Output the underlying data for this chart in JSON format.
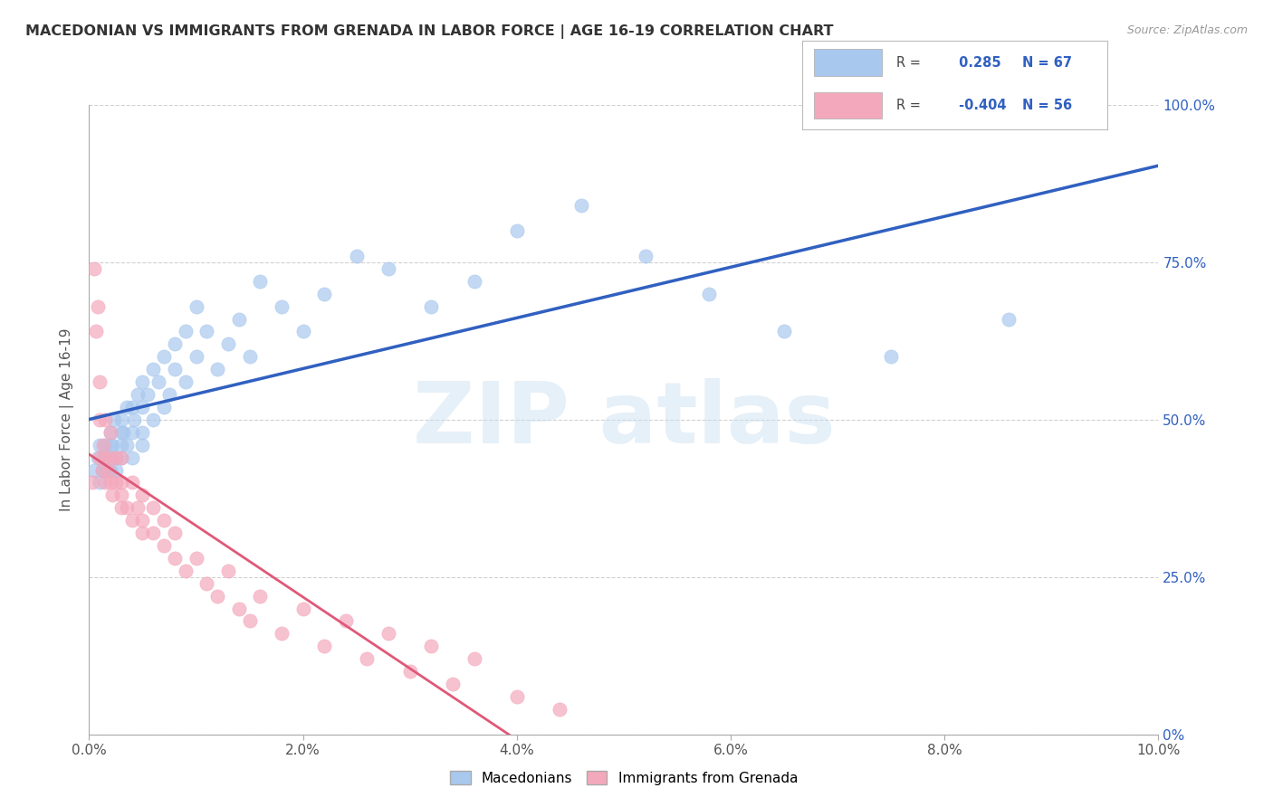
{
  "title": "MACEDONIAN VS IMMIGRANTS FROM GRENADA IN LABOR FORCE | AGE 16-19 CORRELATION CHART",
  "source_text": "Source: ZipAtlas.com",
  "ylabel": "In Labor Force | Age 16-19",
  "xlim": [
    0.0,
    0.1
  ],
  "ylim": [
    0.0,
    1.0
  ],
  "xtick_labels": [
    "0.0%",
    "2.0%",
    "4.0%",
    "6.0%",
    "8.0%",
    "10.0%"
  ],
  "xtick_vals": [
    0.0,
    0.02,
    0.04,
    0.06,
    0.08,
    0.1
  ],
  "ytick_vals": [
    0.0,
    0.25,
    0.5,
    0.75,
    1.0
  ],
  "ytick_labels_right": [
    "0%",
    "25.0%",
    "50.0%",
    "75.0%",
    "100.0%"
  ],
  "blue_R": 0.285,
  "blue_N": 67,
  "pink_R": -0.404,
  "pink_N": 56,
  "blue_color": "#A8C8EE",
  "pink_color": "#F4A8BC",
  "blue_line_color": "#3060C0",
  "pink_line_color": "#E05878",
  "legend_label_blue": "Macedonians",
  "legend_label_pink": "Immigrants from Grenada",
  "watermark_text": "ZIP atlas",
  "background_color": "#FFFFFF",
  "grid_color": "#CCCCCC",
  "blue_x": [
    0.0005,
    0.0008,
    0.001,
    0.001,
    0.0012,
    0.0013,
    0.0015,
    0.0015,
    0.0015,
    0.0018,
    0.002,
    0.002,
    0.002,
    0.002,
    0.0022,
    0.0023,
    0.0025,
    0.0025,
    0.003,
    0.003,
    0.003,
    0.003,
    0.0032,
    0.0035,
    0.0035,
    0.004,
    0.004,
    0.004,
    0.0042,
    0.0045,
    0.005,
    0.005,
    0.005,
    0.005,
    0.0055,
    0.006,
    0.006,
    0.0065,
    0.007,
    0.007,
    0.0075,
    0.008,
    0.008,
    0.009,
    0.009,
    0.01,
    0.01,
    0.011,
    0.012,
    0.013,
    0.014,
    0.015,
    0.016,
    0.018,
    0.02,
    0.022,
    0.025,
    0.028,
    0.032,
    0.036,
    0.04,
    0.046,
    0.052,
    0.058,
    0.065,
    0.075,
    0.086
  ],
  "blue_y": [
    0.42,
    0.44,
    0.4,
    0.46,
    0.42,
    0.44,
    0.42,
    0.46,
    0.44,
    0.44,
    0.42,
    0.46,
    0.48,
    0.44,
    0.46,
    0.5,
    0.44,
    0.42,
    0.46,
    0.48,
    0.44,
    0.5,
    0.48,
    0.46,
    0.52,
    0.44,
    0.48,
    0.52,
    0.5,
    0.54,
    0.48,
    0.52,
    0.46,
    0.56,
    0.54,
    0.58,
    0.5,
    0.56,
    0.52,
    0.6,
    0.54,
    0.58,
    0.62,
    0.56,
    0.64,
    0.6,
    0.68,
    0.64,
    0.58,
    0.62,
    0.66,
    0.6,
    0.72,
    0.68,
    0.64,
    0.7,
    0.76,
    0.74,
    0.68,
    0.72,
    0.8,
    0.84,
    0.76,
    0.7,
    0.64,
    0.6,
    0.66
  ],
  "pink_x": [
    0.0003,
    0.0005,
    0.0006,
    0.0008,
    0.001,
    0.001,
    0.001,
    0.0012,
    0.0013,
    0.0015,
    0.0015,
    0.0015,
    0.0018,
    0.002,
    0.002,
    0.002,
    0.0022,
    0.0025,
    0.0025,
    0.003,
    0.003,
    0.003,
    0.003,
    0.0035,
    0.004,
    0.004,
    0.0045,
    0.005,
    0.005,
    0.005,
    0.006,
    0.006,
    0.007,
    0.007,
    0.008,
    0.008,
    0.009,
    0.01,
    0.011,
    0.012,
    0.013,
    0.014,
    0.015,
    0.016,
    0.018,
    0.02,
    0.022,
    0.024,
    0.026,
    0.028,
    0.03,
    0.032,
    0.034,
    0.036,
    0.04,
    0.044
  ],
  "pink_y": [
    0.4,
    0.74,
    0.64,
    0.68,
    0.44,
    0.5,
    0.56,
    0.42,
    0.46,
    0.4,
    0.44,
    0.5,
    0.42,
    0.4,
    0.44,
    0.48,
    0.38,
    0.4,
    0.44,
    0.36,
    0.4,
    0.44,
    0.38,
    0.36,
    0.34,
    0.4,
    0.36,
    0.34,
    0.38,
    0.32,
    0.32,
    0.36,
    0.3,
    0.34,
    0.28,
    0.32,
    0.26,
    0.28,
    0.24,
    0.22,
    0.26,
    0.2,
    0.18,
    0.22,
    0.16,
    0.2,
    0.14,
    0.18,
    0.12,
    0.16,
    0.1,
    0.14,
    0.08,
    0.12,
    0.06,
    0.04
  ]
}
